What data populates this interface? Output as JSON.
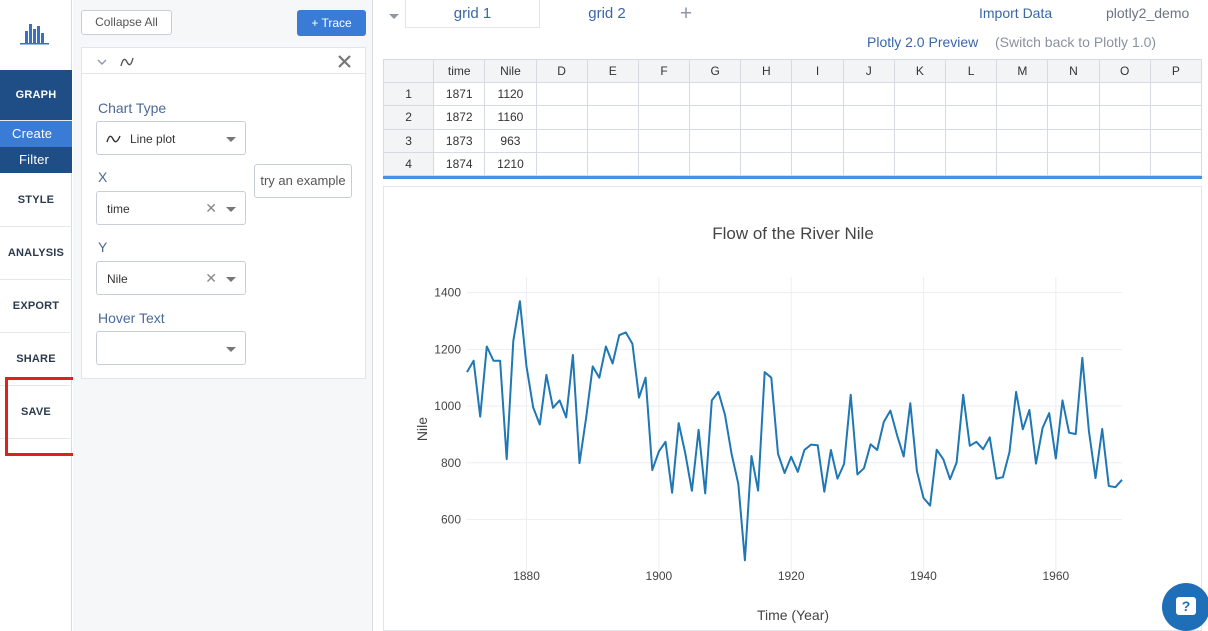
{
  "sidebar": {
    "nav": [
      "GRAPH",
      "STYLE",
      "ANALYSIS",
      "EXPORT",
      "SHARE",
      "SAVE"
    ],
    "graph_sub": [
      "Create",
      "Filter"
    ]
  },
  "panel": {
    "collapse_label": "Collapse All",
    "add_trace_label": "+ Trace",
    "chart_type_label": "Chart Type",
    "chart_type_value": "Line plot",
    "example_label": "try an example",
    "x_label": "X",
    "x_value": "time",
    "y_label": "Y",
    "y_value": "Nile",
    "hover_label": "Hover Text",
    "hover_value": ""
  },
  "header": {
    "tabs": [
      "grid 1",
      "grid 2"
    ],
    "import_label": "Import Data",
    "user": "plotly2_demo",
    "preview_label": "Plotly 2.0 Preview",
    "switch_label": "(Switch back to Plotly 1.0)"
  },
  "grid": {
    "columns": [
      "",
      "time",
      "Nile",
      "D",
      "E",
      "F",
      "G",
      "H",
      "I",
      "J",
      "K",
      "L",
      "M",
      "N",
      "O",
      "P"
    ],
    "rows": [
      [
        "1",
        "1871",
        "1120"
      ],
      [
        "2",
        "1872",
        "1160"
      ],
      [
        "3",
        "1873",
        "963"
      ],
      [
        "4",
        "1874",
        "1210"
      ]
    ]
  },
  "colors": {
    "line": "#1f77b4",
    "accent": "#3a7bd5",
    "nav_dark": "#1f4d86",
    "highlight": "#e21f1f"
  },
  "chart_data": {
    "type": "line",
    "title": "Flow of the River Nile",
    "xlabel": "Time (Year)",
    "ylabel": "Nile",
    "xlim": [
      1871,
      1970
    ],
    "ylim": [
      450,
      1420
    ],
    "xticks": [
      1880,
      1900,
      1920,
      1940,
      1960
    ],
    "yticks": [
      600,
      800,
      1000,
      1200,
      1400
    ],
    "grid": true,
    "x": [
      1871,
      1872,
      1873,
      1874,
      1875,
      1876,
      1877,
      1878,
      1879,
      1880,
      1881,
      1882,
      1883,
      1884,
      1885,
      1886,
      1887,
      1888,
      1889,
      1890,
      1891,
      1892,
      1893,
      1894,
      1895,
      1896,
      1897,
      1898,
      1899,
      1900,
      1901,
      1902,
      1903,
      1904,
      1905,
      1906,
      1907,
      1908,
      1909,
      1910,
      1911,
      1912,
      1913,
      1914,
      1915,
      1916,
      1917,
      1918,
      1919,
      1920,
      1921,
      1922,
      1923,
      1924,
      1925,
      1926,
      1927,
      1928,
      1929,
      1930,
      1931,
      1932,
      1933,
      1934,
      1935,
      1936,
      1937,
      1938,
      1939,
      1940,
      1941,
      1942,
      1943,
      1944,
      1945,
      1946,
      1947,
      1948,
      1949,
      1950,
      1951,
      1952,
      1953,
      1954,
      1955,
      1956,
      1957,
      1958,
      1959,
      1960,
      1961,
      1962,
      1963,
      1964,
      1965,
      1966,
      1967,
      1968,
      1969,
      1970
    ],
    "values": [
      1120,
      1160,
      963,
      1210,
      1160,
      1160,
      813,
      1230,
      1370,
      1140,
      995,
      935,
      1110,
      994,
      1020,
      960,
      1180,
      799,
      958,
      1140,
      1100,
      1210,
      1150,
      1250,
      1260,
      1220,
      1030,
      1100,
      774,
      840,
      874,
      694,
      940,
      833,
      701,
      916,
      692,
      1020,
      1050,
      969,
      831,
      726,
      456,
      824,
      702,
      1120,
      1100,
      832,
      764,
      821,
      768,
      845,
      864,
      862,
      698,
      845,
      744,
      796,
      1040,
      759,
      781,
      865,
      845,
      944,
      984,
      897,
      822,
      1010,
      771,
      676,
      649,
      846,
      812,
      742,
      801,
      1040,
      860,
      874,
      848,
      890,
      744,
      749,
      838,
      1050,
      918,
      986,
      797,
      923,
      975,
      815,
      1020,
      906,
      901,
      1170,
      912,
      746,
      919,
      718,
      714,
      740
    ]
  }
}
